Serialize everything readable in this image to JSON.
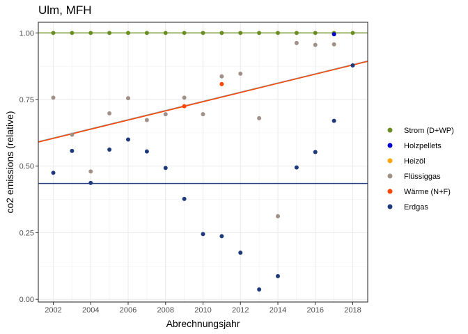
{
  "chart_data": {
    "type": "scatter",
    "title": "Ulm, MFH",
    "xlabel": "Abrechnungsjahr",
    "ylabel": "co2 emissions (relative)",
    "xlim": [
      2001.2,
      2018.8
    ],
    "ylim": [
      -0.01,
      1.04
    ],
    "x_ticks": [
      2002,
      2004,
      2006,
      2008,
      2010,
      2012,
      2014,
      2016,
      2018
    ],
    "y_ticks": [
      0.0,
      0.25,
      0.5,
      0.75,
      1.0
    ],
    "y_tick_labels": [
      "0.00",
      "0.25",
      "0.50",
      "0.75",
      "1.00"
    ],
    "grid": true,
    "legend_position": "right",
    "series": [
      {
        "name": "Strom (D+WP)",
        "color": "#6b8e23",
        "x": [
          2002,
          2003,
          2004,
          2005,
          2006,
          2007,
          2008,
          2009,
          2010,
          2011,
          2012,
          2013,
          2014,
          2015,
          2016,
          2017,
          2018
        ],
        "y": [
          1.0,
          1.0,
          1.0,
          1.0,
          1.0,
          1.0,
          1.0,
          1.0,
          1.0,
          1.0,
          1.0,
          1.0,
          1.0,
          1.0,
          1.0,
          1.0,
          1.0
        ],
        "trend": [
          1.0,
          1.0
        ]
      },
      {
        "name": "Holzpellets",
        "color": "#0000cd",
        "x": [
          2017
        ],
        "y": [
          0.995
        ],
        "trend": null
      },
      {
        "name": "Heizöl",
        "color": "#ffa500",
        "x": [],
        "y": [],
        "trend": null
      },
      {
        "name": "Flüssiggas",
        "color": "#a09088",
        "x": [
          2002,
          2003,
          2004,
          2005,
          2006,
          2007,
          2008,
          2009,
          2010,
          2011,
          2012,
          2013,
          2014,
          2015,
          2016,
          2017
        ],
        "y": [
          0.757,
          0.618,
          0.48,
          0.698,
          0.755,
          0.673,
          0.695,
          0.757,
          0.695,
          0.837,
          0.847,
          0.68,
          0.312,
          0.962,
          0.955,
          0.957
        ],
        "trend": [
          0.592,
          0.895
        ]
      },
      {
        "name": "Wärme (N+F)",
        "color": "#ff4500",
        "x": [
          2009,
          2011
        ],
        "y": [
          0.725,
          0.808
        ],
        "trend": [
          0.59,
          0.893
        ]
      },
      {
        "name": "Erdgas",
        "color": "#1f3a7a",
        "x": [
          2002,
          2003,
          2004,
          2005,
          2006,
          2007,
          2008,
          2009,
          2010,
          2011,
          2012,
          2013,
          2014,
          2015,
          2016,
          2017,
          2018
        ],
        "y": [
          0.475,
          0.557,
          0.437,
          0.562,
          0.6,
          0.555,
          0.493,
          0.377,
          0.245,
          0.237,
          0.175,
          0.037,
          0.087,
          0.495,
          0.553,
          0.67,
          0.878
        ],
        "trend": [
          0.435,
          0.435
        ]
      }
    ]
  }
}
